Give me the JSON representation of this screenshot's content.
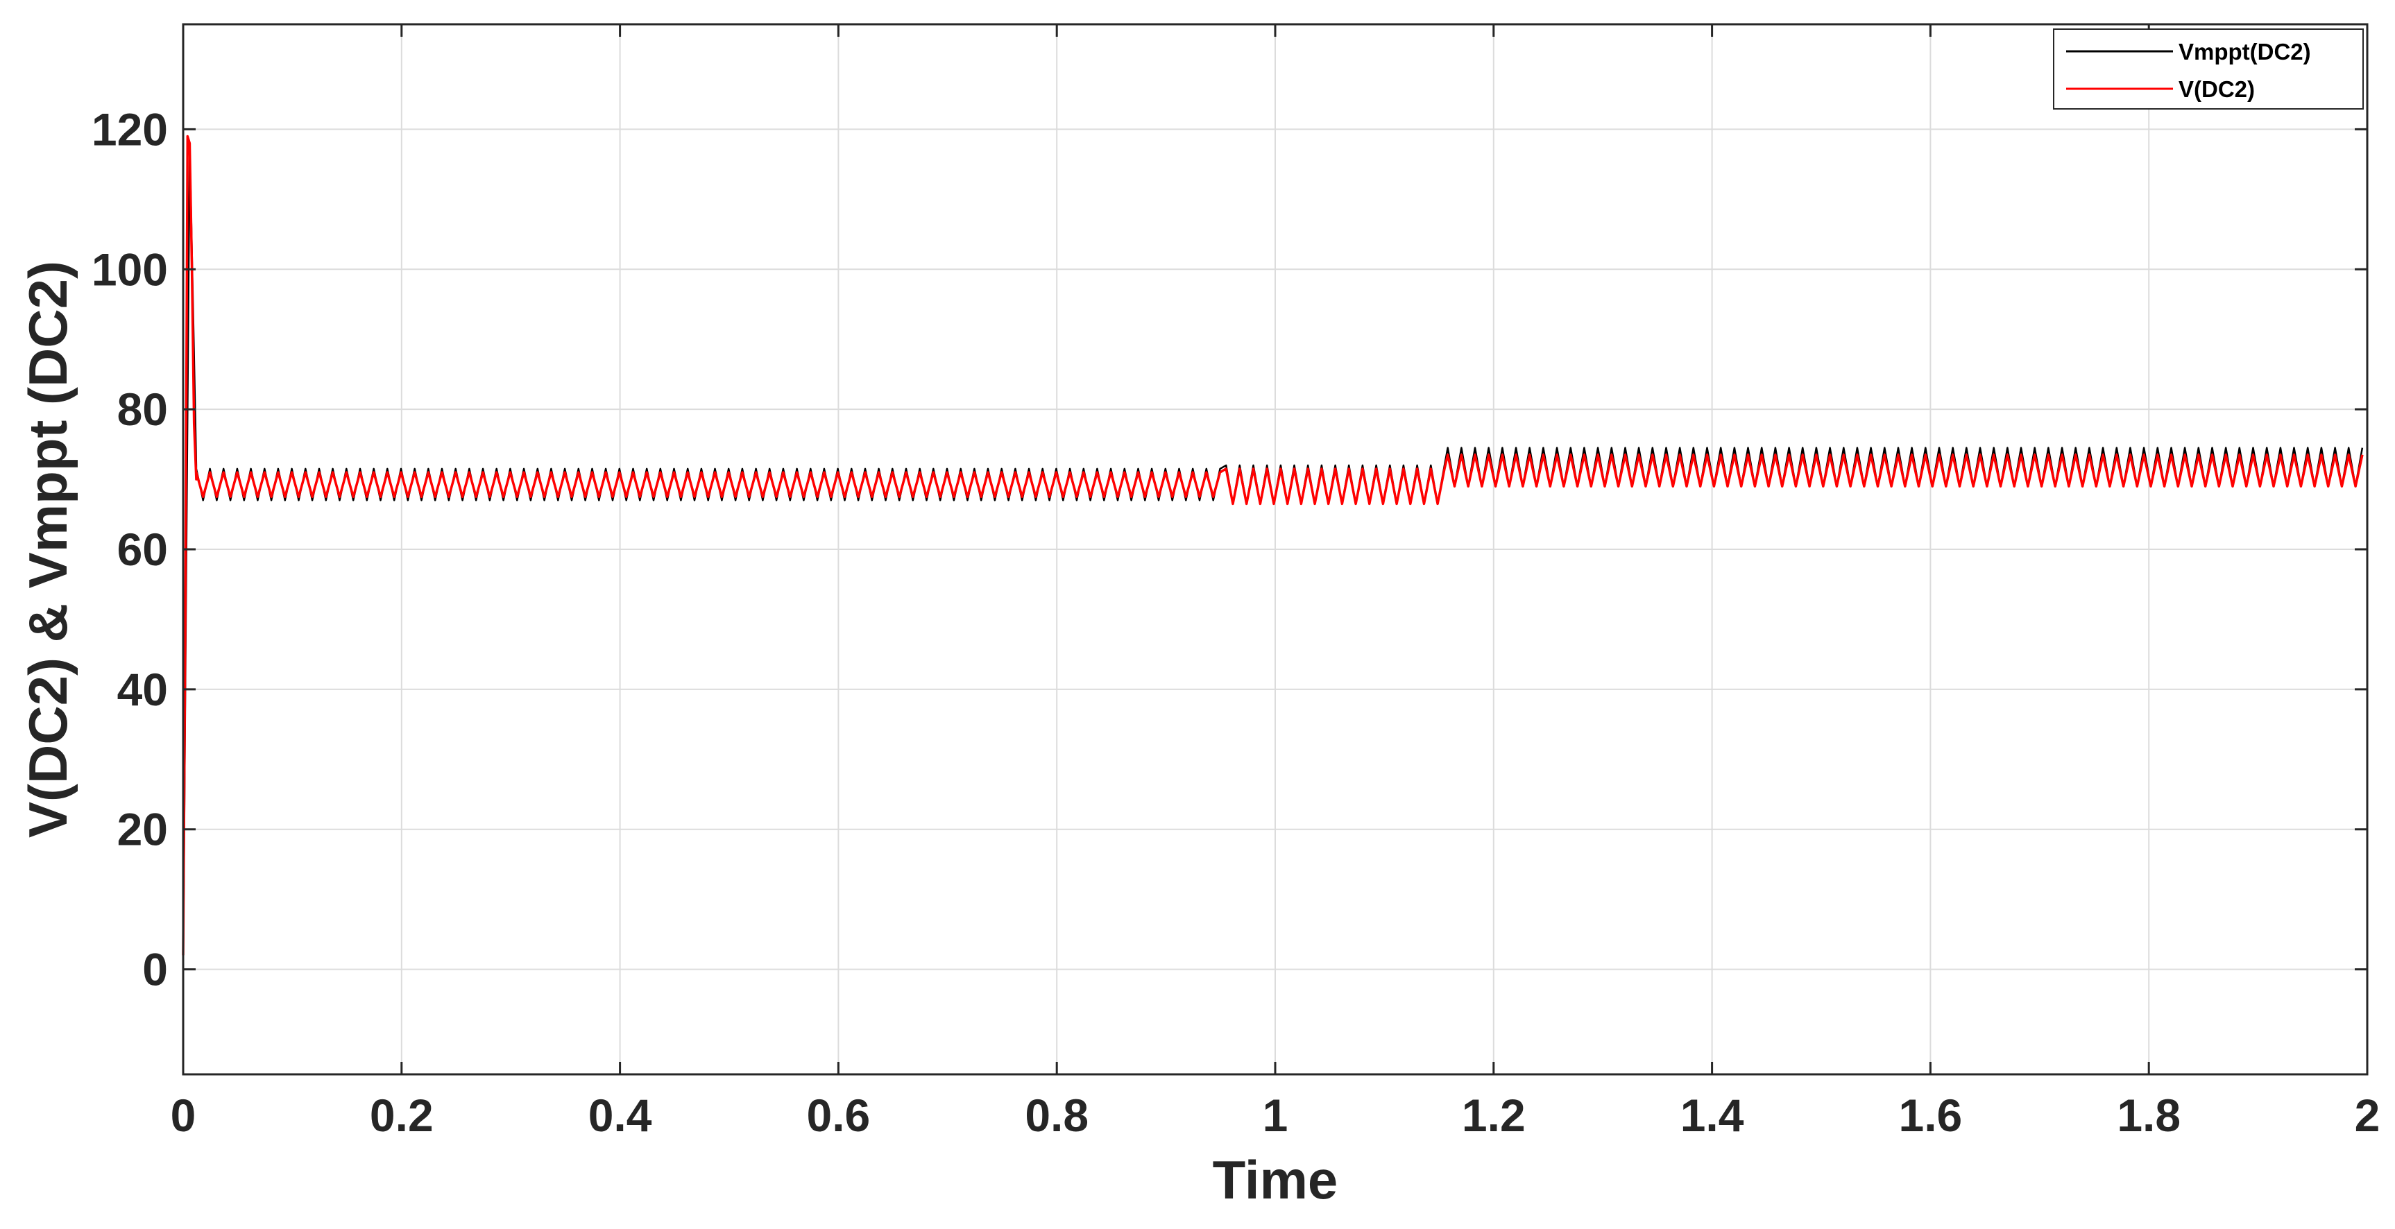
{
  "chart_data": {
    "type": "line",
    "title": "",
    "xlabel": "Time",
    "ylabel": "V(DC2) & Vmppt (DC2)",
    "xlim": [
      0,
      2
    ],
    "ylim": [
      -15,
      135
    ],
    "xticks": [
      0,
      0.2,
      0.4,
      0.6,
      0.8,
      1,
      1.2,
      1.4,
      1.6,
      1.8,
      2
    ],
    "xtick_labels": [
      "0",
      "0.2",
      "0.4",
      "0.6",
      "0.8",
      "1",
      "1.2",
      "1.4",
      "1.6",
      "1.8",
      "2"
    ],
    "yticks": [
      0,
      20,
      40,
      60,
      80,
      100,
      120
    ],
    "ytick_labels": [
      "0",
      "20",
      "40",
      "60",
      "80",
      "100",
      "120"
    ],
    "grid": true,
    "legend_position": "top-right",
    "series": [
      {
        "name": "Vmppt(DC2)",
        "color": "#000000",
        "ripple_period": 0.0125,
        "segments": [
          {
            "x_start": 0.012,
            "x_end": 0.955,
            "low": 67,
            "high": 71.5
          },
          {
            "x_start": 0.955,
            "x_end": 1.158,
            "low": 66.5,
            "high": 72
          },
          {
            "x_start": 1.158,
            "x_end": 2.0,
            "low": 69,
            "high": 74.5
          }
        ],
        "startup": [
          [
            0,
            0
          ],
          [
            0.003,
            60
          ],
          [
            0.006,
            118
          ],
          [
            0.009,
            95
          ],
          [
            0.012,
            72
          ]
        ]
      },
      {
        "name": "V(DC2)",
        "color": "#ff0000",
        "ripple_period": 0.0125,
        "segments": [
          {
            "x_start": 0.012,
            "x_end": 0.955,
            "low": 67.5,
            "high": 71
          },
          {
            "x_start": 0.955,
            "x_end": 1.158,
            "low": 66.5,
            "high": 71.5
          },
          {
            "x_start": 1.158,
            "x_end": 2.0,
            "low": 69,
            "high": 73.5
          }
        ],
        "startup": [
          [
            0,
            2
          ],
          [
            0.002,
            50
          ],
          [
            0.004,
            119
          ],
          [
            0.006,
            118
          ],
          [
            0.008,
            100
          ],
          [
            0.01,
            78
          ],
          [
            0.012,
            70
          ]
        ]
      }
    ]
  }
}
